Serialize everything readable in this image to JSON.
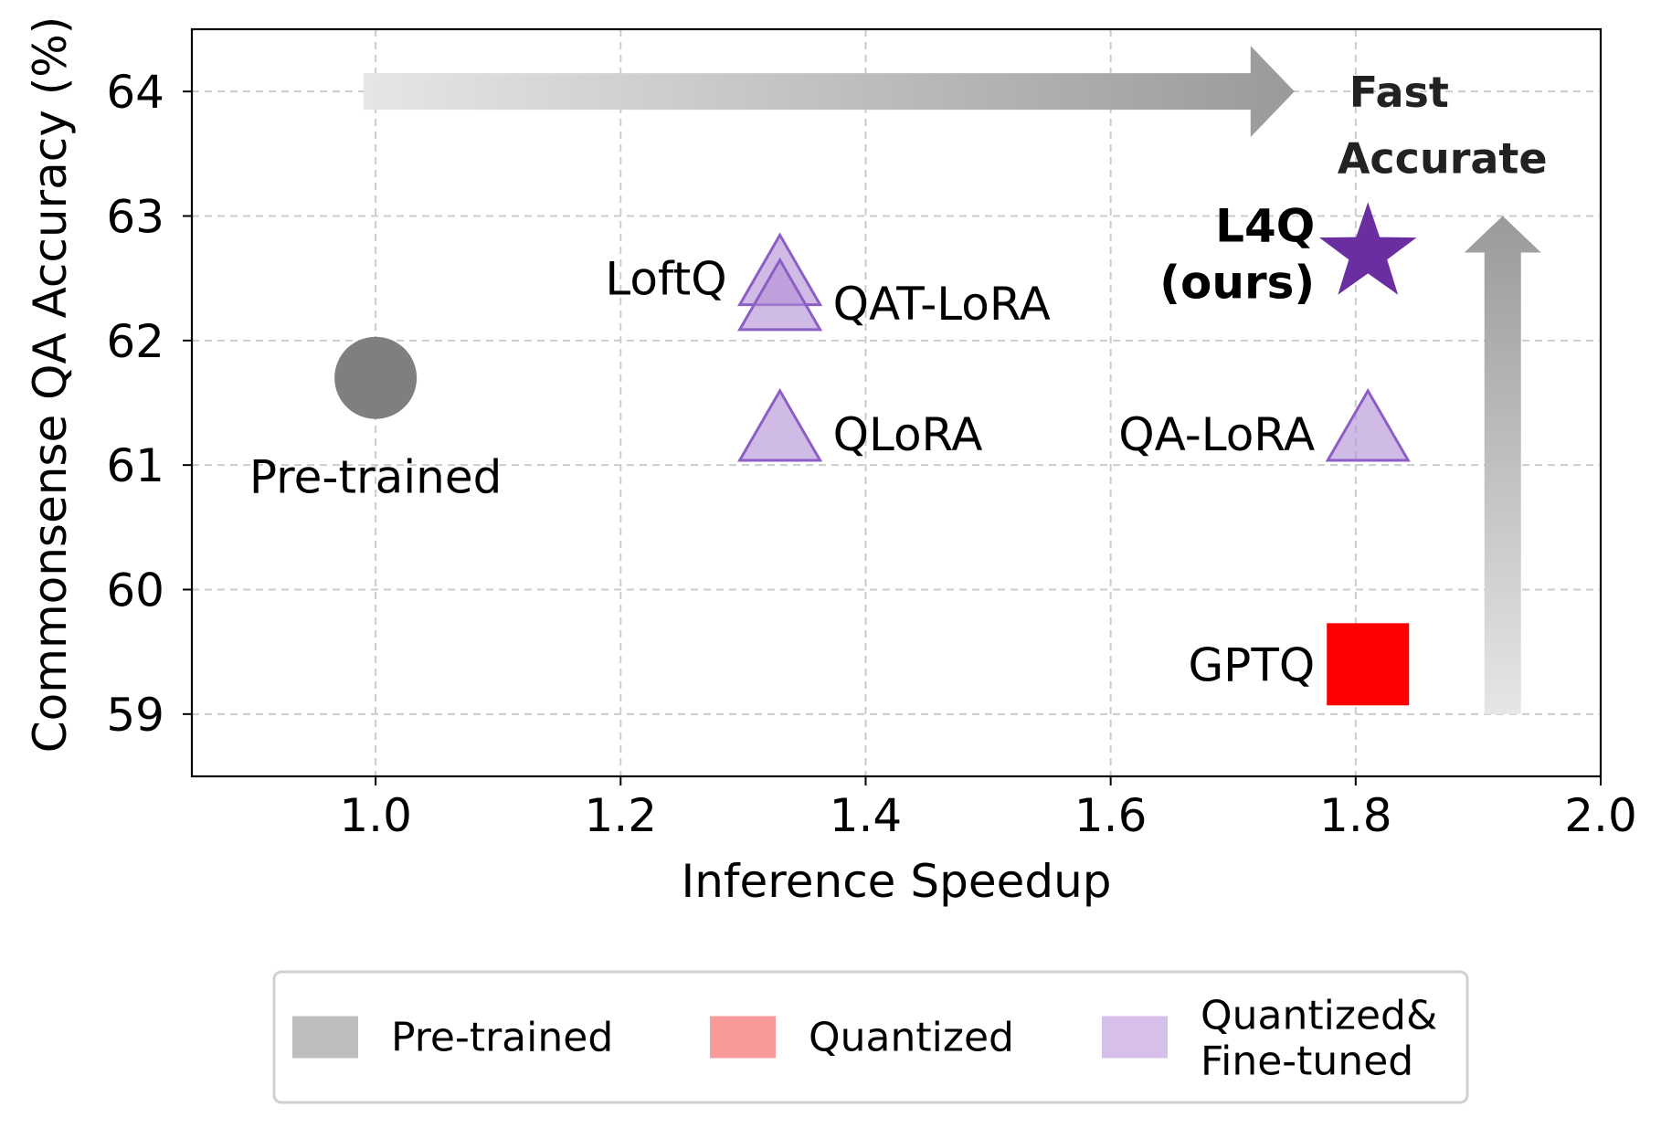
{
  "chart_data": {
    "type": "scatter",
    "title": "",
    "xlabel": "Inference Speedup",
    "ylabel": "Commonsense QA Accuracy (%)",
    "xlim": [
      0.85,
      2.0
    ],
    "ylim": [
      58.5,
      64.5
    ],
    "xticks": [
      1.0,
      1.2,
      1.4,
      1.6,
      1.8,
      2.0
    ],
    "xtick_labels": [
      "1.0",
      "1.2",
      "1.4",
      "1.6",
      "1.8",
      "2.0"
    ],
    "yticks": [
      59,
      60,
      61,
      62,
      63,
      64
    ],
    "ytick_labels": [
      "59",
      "60",
      "61",
      "62",
      "63",
      "64"
    ],
    "grid": true,
    "points": [
      {
        "label": "Pre-trained",
        "x": 1.0,
        "y": 61.7,
        "marker": "circle",
        "category": "Pre-trained",
        "color": "#7f7f7f",
        "label_pos": "below"
      },
      {
        "label": "LoftQ",
        "x": 1.33,
        "y": 62.5,
        "marker": "triangle",
        "category": "Quantized&Fine-tuned",
        "color": "#b08ed6",
        "label_pos": "left"
      },
      {
        "label": "QAT-LoRA",
        "x": 1.33,
        "y": 62.3,
        "marker": "triangle",
        "category": "Quantized&Fine-tuned",
        "color": "#b08ed6",
        "label_pos": "right"
      },
      {
        "label": "QLoRA",
        "x": 1.33,
        "y": 61.25,
        "marker": "triangle",
        "category": "Quantized&Fine-tuned",
        "color": "#b08ed6",
        "label_pos": "right"
      },
      {
        "label": "QA-LoRA",
        "x": 1.81,
        "y": 61.25,
        "marker": "triangle",
        "category": "Quantized&Fine-tuned",
        "color": "#b08ed6",
        "label_pos": "left"
      },
      {
        "label": "GPTQ",
        "x": 1.81,
        "y": 59.4,
        "marker": "square",
        "category": "Quantized",
        "color": "#ff0000",
        "label_pos": "left"
      },
      {
        "label": "L4Q\n(ours)",
        "x": 1.81,
        "y": 62.7,
        "marker": "star",
        "category": "Ours",
        "color": "#6a2ea0",
        "label_pos": "left",
        "bold": true
      }
    ],
    "annotations": [
      {
        "text": "Fast",
        "arrow": "horizontal",
        "from_x": 0.99,
        "to_x": 1.75,
        "at_y": 64.0
      },
      {
        "text": "Accurate",
        "arrow": "vertical",
        "from_y": 59.0,
        "to_y": 63.0,
        "at_x": 1.92
      }
    ],
    "legend": {
      "placement": "bottom-center",
      "entries": [
        {
          "label": "Pre-trained",
          "color": "#bdbdbd"
        },
        {
          "label": "Quantized",
          "color": "#f99a9a"
        },
        {
          "label": "Quantized&\nFine-tuned",
          "color": "#d6bfea"
        }
      ]
    }
  }
}
